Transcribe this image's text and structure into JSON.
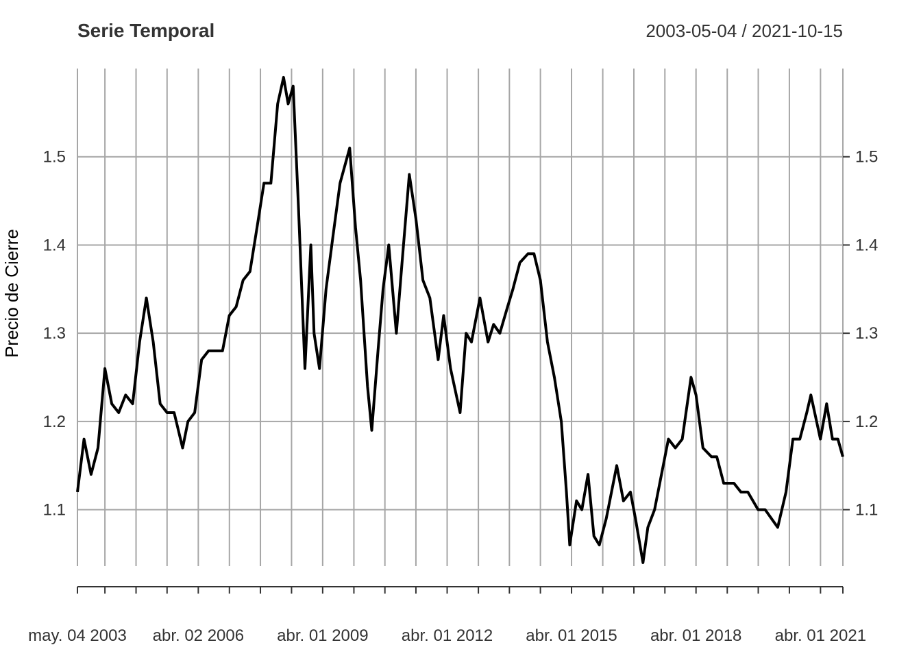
{
  "chart_data": {
    "type": "line",
    "title": "Serie Temporal",
    "date_range": "2003-05-04 / 2021-10-15",
    "ylabel": "Precio de Cierre",
    "xlabel": "",
    "xlim": [
      "2003-05-04",
      "2021-10-15"
    ],
    "ylim": [
      1.036,
      1.6
    ],
    "y_ticks": [
      {
        "value": 1.1,
        "label": "1.1"
      },
      {
        "value": 1.2,
        "label": "1.2"
      },
      {
        "value": 1.3,
        "label": "1.3"
      },
      {
        "value": 1.4,
        "label": "1.4"
      },
      {
        "value": 1.5,
        "label": "1.5"
      }
    ],
    "x_tick_labels": [
      {
        "date": "2003-05-04",
        "label": "may. 04 2003"
      },
      {
        "date": "2006-04-02",
        "label": "abr. 02 2006"
      },
      {
        "date": "2009-04-01",
        "label": "abr. 01 2009"
      },
      {
        "date": "2012-04-01",
        "label": "abr. 01 2012"
      },
      {
        "date": "2015-04-01",
        "label": "abr. 01 2015"
      },
      {
        "date": "2018-04-01",
        "label": "abr. 01 2018"
      },
      {
        "date": "2021-04-01",
        "label": "abr. 01 2021"
      }
    ],
    "grid_dates": [
      "2003-05-04",
      "2004-01-01",
      "2004-10-01",
      "2005-07-01",
      "2006-04-02",
      "2007-01-01",
      "2007-10-01",
      "2008-07-01",
      "2009-04-01",
      "2010-01-01",
      "2010-10-01",
      "2011-07-01",
      "2012-04-01",
      "2013-01-01",
      "2013-10-01",
      "2014-07-01",
      "2015-04-01",
      "2016-01-01",
      "2016-10-01",
      "2017-07-01",
      "2018-04-01",
      "2019-01-01",
      "2019-10-01",
      "2020-07-01",
      "2021-04-01",
      "2021-10-15"
    ],
    "grid": true,
    "series": [
      {
        "color": "#000000",
        "x": [
          "2003-05-04",
          "2003-07-01",
          "2003-09-01",
          "2003-11-01",
          "2004-01-01",
          "2004-03-01",
          "2004-05-01",
          "2004-07-01",
          "2004-09-01",
          "2004-11-01",
          "2004-12-31",
          "2005-03-01",
          "2005-05-01",
          "2005-07-01",
          "2005-09-01",
          "2005-11-15",
          "2006-01-01",
          "2006-03-01",
          "2006-05-01",
          "2006-07-01",
          "2006-09-01",
          "2006-11-01",
          "2006-12-31",
          "2007-03-01",
          "2007-05-01",
          "2007-07-01",
          "2007-09-01",
          "2007-11-01",
          "2008-01-01",
          "2008-03-01",
          "2008-04-22",
          "2008-06-01",
          "2008-07-15",
          "2008-09-01",
          "2008-10-27",
          "2008-12-18",
          "2009-01-15",
          "2009-03-04",
          "2009-05-01",
          "2009-07-01",
          "2009-09-01",
          "2009-11-25",
          "2010-01-15",
          "2010-03-01",
          "2010-05-01",
          "2010-06-07",
          "2010-08-01",
          "2010-09-15",
          "2010-11-04",
          "2011-01-10",
          "2011-03-01",
          "2011-05-04",
          "2011-07-01",
          "2011-09-01",
          "2011-11-01",
          "2012-01-13",
          "2012-03-01",
          "2012-05-01",
          "2012-07-24",
          "2012-09-15",
          "2012-11-01",
          "2013-01-15",
          "2013-03-27",
          "2013-05-15",
          "2013-07-09",
          "2013-09-15",
          "2013-11-01",
          "2014-01-01",
          "2014-03-13",
          "2014-05-06",
          "2014-07-01",
          "2014-09-01",
          "2014-11-01",
          "2015-01-01",
          "2015-02-15",
          "2015-03-16",
          "2015-05-15",
          "2015-07-01",
          "2015-08-24",
          "2015-10-15",
          "2015-12-02",
          "2016-02-01",
          "2016-05-03",
          "2016-07-01",
          "2016-09-01",
          "2016-10-15",
          "2016-12-20",
          "2017-02-01",
          "2017-04-01",
          "2017-06-01",
          "2017-08-01",
          "2017-10-01",
          "2017-12-01",
          "2018-02-16",
          "2018-04-01",
          "2018-06-01",
          "2018-08-15",
          "2018-10-01",
          "2018-12-01",
          "2019-03-01",
          "2019-05-01",
          "2019-07-01",
          "2019-09-30",
          "2019-12-01",
          "2020-03-20",
          "2020-06-01",
          "2020-08-01",
          "2020-10-01",
          "2020-12-01",
          "2021-01-06",
          "2021-03-31",
          "2021-05-25",
          "2021-07-15",
          "2021-09-01",
          "2021-10-15"
        ],
        "y": [
          1.12,
          1.18,
          1.14,
          1.17,
          1.26,
          1.22,
          1.21,
          1.23,
          1.22,
          1.29,
          1.34,
          1.29,
          1.22,
          1.21,
          1.21,
          1.17,
          1.2,
          1.21,
          1.27,
          1.28,
          1.28,
          1.28,
          1.32,
          1.33,
          1.36,
          1.37,
          1.42,
          1.47,
          1.47,
          1.56,
          1.59,
          1.56,
          1.58,
          1.44,
          1.26,
          1.4,
          1.3,
          1.26,
          1.35,
          1.41,
          1.47,
          1.51,
          1.42,
          1.36,
          1.24,
          1.19,
          1.28,
          1.35,
          1.4,
          1.3,
          1.38,
          1.48,
          1.43,
          1.36,
          1.34,
          1.27,
          1.32,
          1.26,
          1.21,
          1.3,
          1.29,
          1.34,
          1.29,
          1.31,
          1.3,
          1.33,
          1.35,
          1.38,
          1.39,
          1.39,
          1.36,
          1.29,
          1.25,
          1.2,
          1.12,
          1.06,
          1.11,
          1.1,
          1.14,
          1.07,
          1.06,
          1.09,
          1.15,
          1.11,
          1.12,
          1.09,
          1.04,
          1.08,
          1.1,
          1.14,
          1.18,
          1.17,
          1.18,
          1.25,
          1.23,
          1.17,
          1.16,
          1.16,
          1.13,
          1.13,
          1.12,
          1.12,
          1.1,
          1.1,
          1.08,
          1.12,
          1.18,
          1.18,
          1.21,
          1.23,
          1.18,
          1.22,
          1.18,
          1.18,
          1.16
        ]
      }
    ]
  }
}
